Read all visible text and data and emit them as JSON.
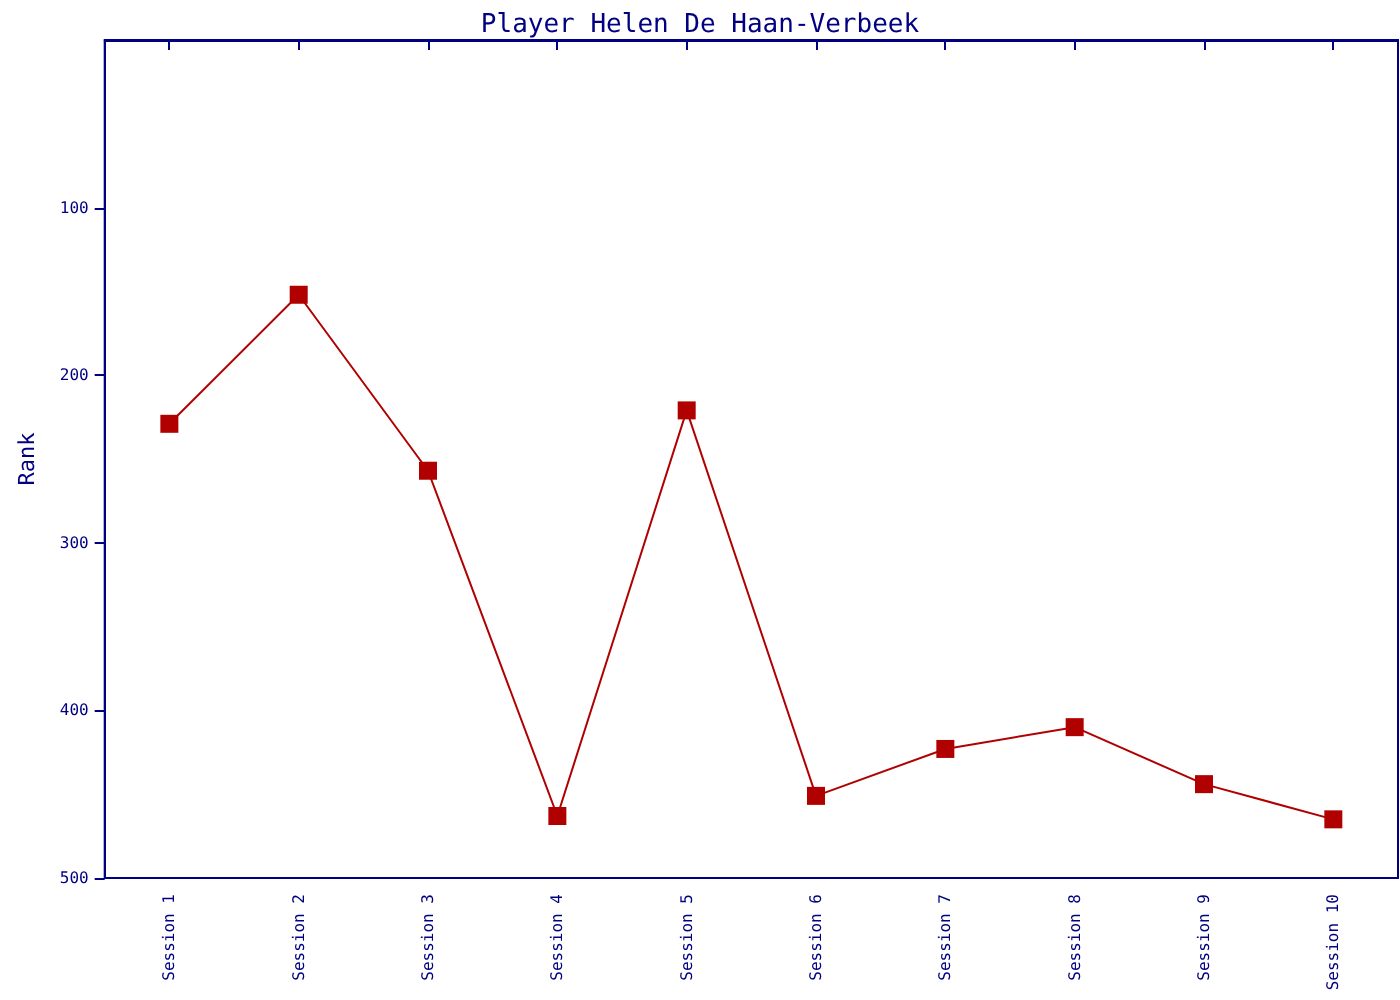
{
  "chart_data": {
    "type": "line",
    "title": "Player Helen De Haan-Verbeek",
    "ylabel": "Rank",
    "categories": [
      "Session 1",
      "Session 2",
      "Session 3",
      "Session 4",
      "Session 5",
      "Session 6",
      "Session 7",
      "Session 8",
      "Session 9",
      "Session 10"
    ],
    "series": [
      {
        "color": "#b00000",
        "values": [
          229,
          152,
          257,
          463,
          221,
          451,
          423,
          410,
          444,
          465
        ]
      }
    ],
    "ylim": [
      500,
      0
    ],
    "yticks": [
      100,
      200,
      300,
      400,
      500
    ],
    "grid": false,
    "marker": "square",
    "line_style": "solid"
  }
}
